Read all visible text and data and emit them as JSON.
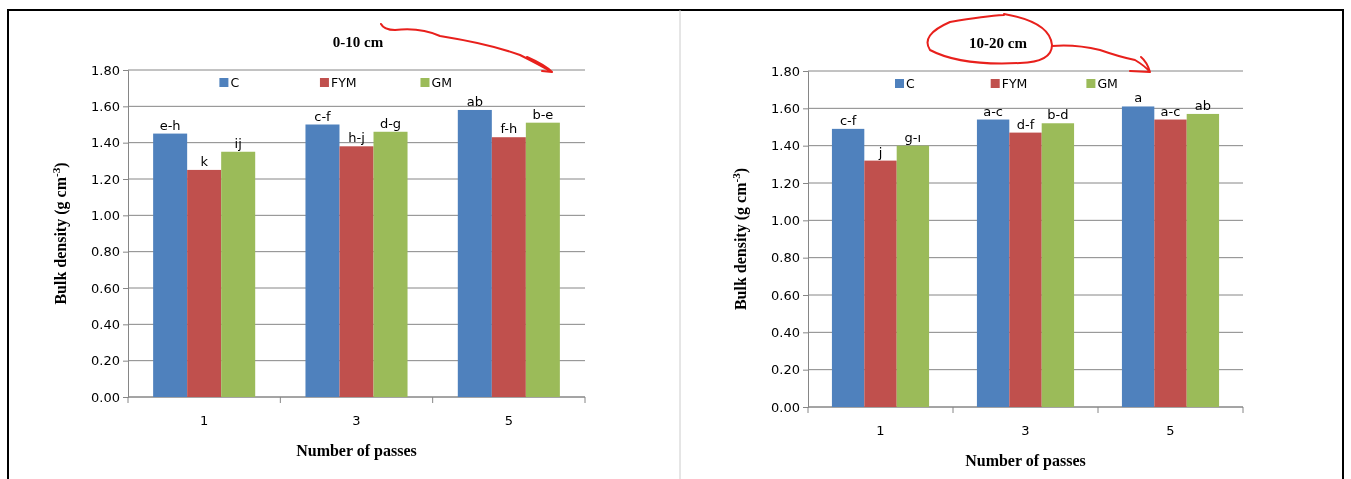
{
  "chart_data": [
    {
      "type": "bar",
      "title": "0-10 cm",
      "xlabel": "Number of passes",
      "ylabel": "Bulk density (g cm$^{-3}$)",
      "categories": [
        "1",
        "3",
        "5"
      ],
      "ylim": [
        0,
        1.8
      ],
      "yticks": [
        {
          "value": 0,
          "label": "0.00"
        },
        {
          "value": 0.2,
          "label": "0.20"
        },
        {
          "value": 0.4,
          "label": "0.40"
        },
        {
          "value": 0.6,
          "label": "0.60"
        },
        {
          "value": 0.8,
          "label": "0.80"
        },
        {
          "value": 1,
          "label": "1.00"
        },
        {
          "value": 1.2,
          "label": "1.20"
        },
        {
          "value": 1.4,
          "label": "1.40"
        },
        {
          "value": 1.6,
          "label": "1.60"
        },
        {
          "value": 1.8,
          "label": "1.80"
        }
      ],
      "grid": "y",
      "legend": "top",
      "series": [
        {
          "name": "C",
          "color": "#4f81bd",
          "values": [
            1.45,
            1.5,
            1.58
          ],
          "value_labels": [
            "e-h",
            "c-f",
            "ab"
          ]
        },
        {
          "name": "FYM",
          "color": "#c0504d",
          "values": [
            1.25,
            1.38,
            1.43
          ],
          "value_labels": [
            "k",
            "h-j",
            "f-h"
          ]
        },
        {
          "name": "GM",
          "color": "#9bbb59",
          "values": [
            1.35,
            1.46,
            1.51
          ],
          "value_labels": [
            "ij",
            "d-g",
            "b-e"
          ]
        }
      ]
    },
    {
      "type": "bar",
      "title": "10-20 cm",
      "xlabel": "Number of passes",
      "ylabel": "Bulk density (g cm$^{-3}$)",
      "categories": [
        "1",
        "3",
        "5"
      ],
      "ylim": [
        0,
        1.8
      ],
      "yticks": [
        {
          "value": 0,
          "label": "0.00"
        },
        {
          "value": 0.2,
          "label": "0.20"
        },
        {
          "value": 0.4,
          "label": "0.40"
        },
        {
          "value": 0.6,
          "label": "0.60"
        },
        {
          "value": 0.8,
          "label": "0.80"
        },
        {
          "value": 1,
          "label": "1.00"
        },
        {
          "value": 1.2,
          "label": "1.20"
        },
        {
          "value": 1.4,
          "label": "1.40"
        },
        {
          "value": 1.6,
          "label": "1.60"
        },
        {
          "value": 1.8,
          "label": "1.80"
        }
      ],
      "grid": "y",
      "legend": "top",
      "series": [
        {
          "name": "C",
          "color": "#4f81bd",
          "values": [
            1.49,
            1.54,
            1.61
          ],
          "value_labels": [
            "c-f",
            "a-c",
            "a"
          ]
        },
        {
          "name": "FYM",
          "color": "#c0504d",
          "values": [
            1.32,
            1.47,
            1.54
          ],
          "value_labels": [
            "j",
            "d-f",
            "a-c"
          ]
        },
        {
          "name": "GM",
          "color": "#9bbb59",
          "values": [
            1.4,
            1.52,
            1.57
          ],
          "value_labels": [
            "g-ı",
            "b-d",
            "ab"
          ]
        }
      ]
    }
  ]
}
